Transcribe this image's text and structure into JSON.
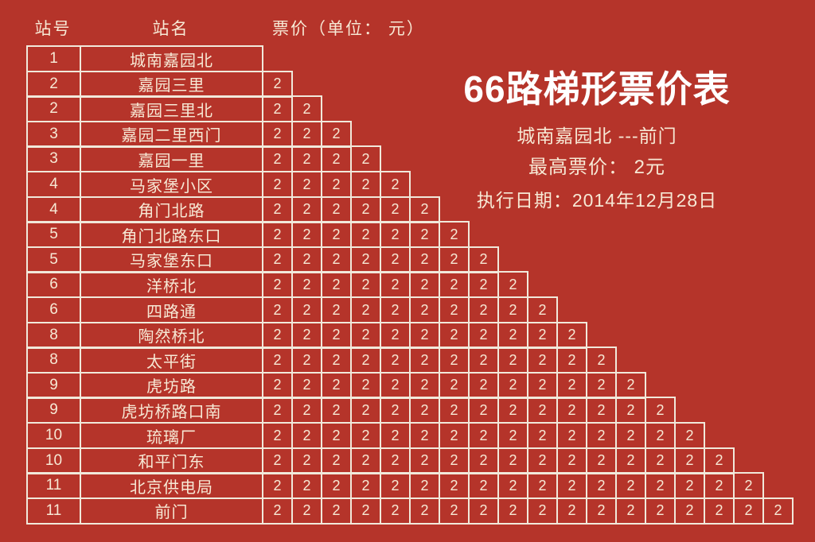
{
  "colors": {
    "background": "#b5342a",
    "text": "#f7e9d5",
    "border": "#f1e9db",
    "title": "#ffffff"
  },
  "header": {
    "station_no": "站号",
    "station_name": "站名",
    "fare_unit": "票价（单位： 元）"
  },
  "info": {
    "title": "66路梯形票价表",
    "route": "城南嘉园北 ---前门",
    "max_fare": "最高票价： 2元",
    "effective_date": "执行日期：2014年12月28日"
  },
  "table": {
    "fare_value": "2",
    "stations": [
      {
        "no": "1",
        "name": "城南嘉园北",
        "fares": []
      },
      {
        "no": "2",
        "name": "嘉园三里",
        "fares": [
          "2"
        ]
      },
      {
        "no": "2",
        "name": "嘉园三里北",
        "fares": [
          "2",
          "2"
        ]
      },
      {
        "no": "3",
        "name": "嘉园二里西门",
        "fares": [
          "2",
          "2",
          "2"
        ]
      },
      {
        "no": "3",
        "name": "嘉园一里",
        "fares": [
          "2",
          "2",
          "2",
          "2"
        ]
      },
      {
        "no": "4",
        "name": "马家堡小区",
        "fares": [
          "2",
          "2",
          "2",
          "2",
          "2"
        ]
      },
      {
        "no": "4",
        "name": "角门北路",
        "fares": [
          "2",
          "2",
          "2",
          "2",
          "2",
          "2"
        ]
      },
      {
        "no": "5",
        "name": "角门北路东口",
        "fares": [
          "2",
          "2",
          "2",
          "2",
          "2",
          "2",
          "2"
        ]
      },
      {
        "no": "5",
        "name": "马家堡东口",
        "fares": [
          "2",
          "2",
          "2",
          "2",
          "2",
          "2",
          "2",
          "2"
        ]
      },
      {
        "no": "6",
        "name": "洋桥北",
        "fares": [
          "2",
          "2",
          "2",
          "2",
          "2",
          "2",
          "2",
          "2",
          "2"
        ]
      },
      {
        "no": "6",
        "name": "四路通",
        "fares": [
          "2",
          "2",
          "2",
          "2",
          "2",
          "2",
          "2",
          "2",
          "2",
          "2"
        ]
      },
      {
        "no": "8",
        "name": "陶然桥北",
        "fares": [
          "2",
          "2",
          "2",
          "2",
          "2",
          "2",
          "2",
          "2",
          "2",
          "2",
          "2"
        ]
      },
      {
        "no": "8",
        "name": "太平街",
        "fares": [
          "2",
          "2",
          "2",
          "2",
          "2",
          "2",
          "2",
          "2",
          "2",
          "2",
          "2",
          "2"
        ]
      },
      {
        "no": "9",
        "name": "虎坊路",
        "fares": [
          "2",
          "2",
          "2",
          "2",
          "2",
          "2",
          "2",
          "2",
          "2",
          "2",
          "2",
          "2",
          "2"
        ]
      },
      {
        "no": "9",
        "name": "虎坊桥路口南",
        "fares": [
          "2",
          "2",
          "2",
          "2",
          "2",
          "2",
          "2",
          "2",
          "2",
          "2",
          "2",
          "2",
          "2",
          "2"
        ]
      },
      {
        "no": "10",
        "name": "琉璃厂",
        "fares": [
          "2",
          "2",
          "2",
          "2",
          "2",
          "2",
          "2",
          "2",
          "2",
          "2",
          "2",
          "2",
          "2",
          "2",
          "2"
        ]
      },
      {
        "no": "10",
        "name": "和平门东",
        "fares": [
          "2",
          "2",
          "2",
          "2",
          "2",
          "2",
          "2",
          "2",
          "2",
          "2",
          "2",
          "2",
          "2",
          "2",
          "2",
          "2"
        ]
      },
      {
        "no": "11",
        "name": "北京供电局",
        "fares": [
          "2",
          "2",
          "2",
          "2",
          "2",
          "2",
          "2",
          "2",
          "2",
          "2",
          "2",
          "2",
          "2",
          "2",
          "2",
          "2",
          "2"
        ]
      },
      {
        "no": "11",
        "name": "前门",
        "fares": [
          "2",
          "2",
          "2",
          "2",
          "2",
          "2",
          "2",
          "2",
          "2",
          "2",
          "2",
          "2",
          "2",
          "2",
          "2",
          "2",
          "2",
          "2"
        ]
      }
    ]
  }
}
